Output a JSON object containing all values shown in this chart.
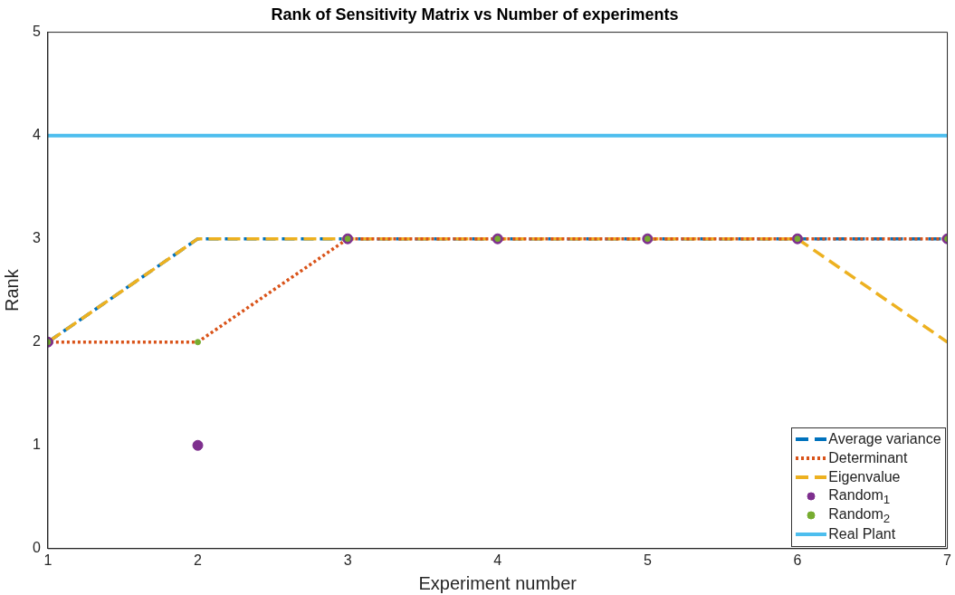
{
  "chart_data": {
    "type": "line",
    "title": "Rank of Sensitivity Matrix vs Number of experiments",
    "xlabel": "Experiment number",
    "ylabel": "Rank",
    "x": [
      1,
      2,
      3,
      4,
      5,
      6,
      7
    ],
    "xlim": [
      1,
      7
    ],
    "xticks": [
      1,
      2,
      3,
      4,
      5,
      6,
      7
    ],
    "ylim": [
      0,
      5
    ],
    "yticks": [
      0,
      1,
      2,
      3,
      4,
      5
    ],
    "grid": false,
    "legend": "bottom right",
    "series": [
      {
        "name": "Average variance",
        "color": "#0072bd",
        "line_style": "dashed",
        "values": [
          2,
          3,
          3,
          3,
          3,
          3,
          3
        ]
      },
      {
        "name": "Determinant",
        "color": "#d95319",
        "line_style": "dotted",
        "values": [
          2,
          2,
          3,
          3,
          3,
          3,
          3
        ]
      },
      {
        "name": "Eigenvalue",
        "color": "#edb120",
        "line_style": "dashed",
        "values": [
          2,
          3,
          3,
          3,
          3,
          3,
          2
        ]
      },
      {
        "name": "Random$_{1}$",
        "type": "scatter",
        "color": "#7e2f8e",
        "marker": "circle",
        "values": [
          2,
          1,
          3,
          3,
          3,
          3,
          3
        ]
      },
      {
        "name": "Random$_{2}$",
        "type": "scatter",
        "color": "#77ac30",
        "marker": "circle",
        "values": [
          2,
          2,
          3,
          3,
          3,
          3,
          3
        ]
      },
      {
        "name": "Real Plant",
        "color": "#4dbeee",
        "line_style": "solid",
        "values": [
          4,
          4,
          4,
          4,
          4,
          4,
          4
        ]
      }
    ]
  }
}
